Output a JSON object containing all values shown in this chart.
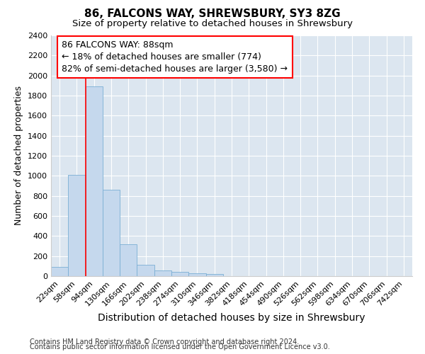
{
  "title": "86, FALCONS WAY, SHREWSBURY, SY3 8ZG",
  "subtitle": "Size of property relative to detached houses in Shrewsbury",
  "xlabel": "Distribution of detached houses by size in Shrewsbury",
  "ylabel": "Number of detached properties",
  "footer_line1": "Contains HM Land Registry data © Crown copyright and database right 2024.",
  "footer_line2": "Contains public sector information licensed under the Open Government Licence v3.0.",
  "bin_labels": [
    "22sqm",
    "58sqm",
    "94sqm",
    "130sqm",
    "166sqm",
    "202sqm",
    "238sqm",
    "274sqm",
    "310sqm",
    "346sqm",
    "382sqm",
    "418sqm",
    "454sqm",
    "490sqm",
    "526sqm",
    "562sqm",
    "598sqm",
    "634sqm",
    "670sqm",
    "706sqm",
    "742sqm"
  ],
  "bar_values": [
    90,
    1010,
    1890,
    860,
    320,
    115,
    55,
    45,
    30,
    20,
    0,
    0,
    0,
    0,
    0,
    0,
    0,
    0,
    0,
    0,
    0
  ],
  "bar_color": "#c5d8ed",
  "bar_edgecolor": "#7aafd4",
  "vline_x": 1.5,
  "annotation_text_line1": "86 FALCONS WAY: 88sqm",
  "annotation_text_line2": "← 18% of detached houses are smaller (774)",
  "annotation_text_line3": "82% of semi-detached houses are larger (3,580) →",
  "annotation_box_color": "white",
  "annotation_box_edgecolor": "red",
  "vline_color": "red",
  "ylim": [
    0,
    2400
  ],
  "yticks": [
    0,
    200,
    400,
    600,
    800,
    1000,
    1200,
    1400,
    1600,
    1800,
    2000,
    2200,
    2400
  ],
  "bg_color": "#dce6f0",
  "title_fontsize": 11,
  "subtitle_fontsize": 9.5,
  "xlabel_fontsize": 10,
  "ylabel_fontsize": 9,
  "tick_fontsize": 8,
  "footer_fontsize": 7,
  "annotation_fontsize": 9
}
